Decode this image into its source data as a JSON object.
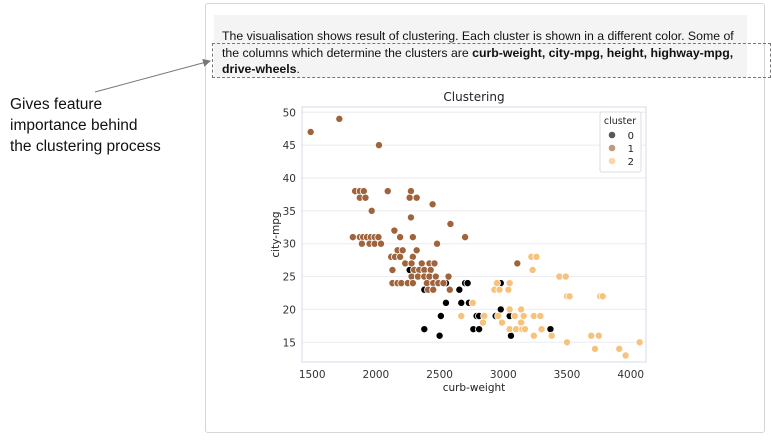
{
  "annotation": {
    "lines": [
      "Gives feature",
      "importance behind",
      "the clustering process"
    ]
  },
  "description": {
    "text": "The visualisation shows result of clustering. Each cluster is shown in a different color. Some of the columns which determine the clusters are ",
    "bold": "curb-weight, city-mpg, height, highway-mpg, drive-wheels",
    "end": "."
  },
  "chart_data": {
    "type": "scatter",
    "title": "Clustering",
    "xlabel": "curb-weight",
    "ylabel": "city-mpg",
    "xlim": [
      1420,
      4120
    ],
    "ylim": [
      12,
      50.8
    ],
    "xticks": [
      1500,
      2000,
      2500,
      3000,
      3500,
      4000
    ],
    "yticks": [
      15,
      20,
      25,
      30,
      35,
      40,
      45,
      50
    ],
    "grid": true,
    "legend": {
      "title": "cluster",
      "placement": "top-right"
    },
    "series": [
      {
        "name": "0",
        "color": "#000000",
        "points": [
          [
            2265,
            26
          ],
          [
            2380,
            23
          ],
          [
            2550,
            24
          ],
          [
            2655,
            23
          ],
          [
            2700,
            24
          ],
          [
            2720,
            24
          ],
          [
            2980,
            24
          ],
          [
            2550,
            21
          ],
          [
            2670,
            21
          ],
          [
            2730,
            21
          ],
          [
            2510,
            19
          ],
          [
            2790,
            19
          ],
          [
            2810,
            19
          ],
          [
            2940,
            19
          ],
          [
            3050,
            19
          ],
          [
            2980,
            20
          ],
          [
            2380,
            17
          ],
          [
            2765,
            17
          ],
          [
            2810,
            17
          ],
          [
            3140,
            17
          ],
          [
            3370,
            17
          ],
          [
            2500,
            16
          ],
          [
            3060,
            16
          ]
        ]
      },
      {
        "name": "1",
        "color": "#a0633b",
        "points": [
          [
            1488,
            47
          ],
          [
            1713,
            49
          ],
          [
            2024,
            45
          ],
          [
            1837,
            38
          ],
          [
            1874,
            38
          ],
          [
            1905,
            38
          ],
          [
            1874,
            37
          ],
          [
            1918,
            37
          ],
          [
            2093,
            38
          ],
          [
            2275,
            38
          ],
          [
            2265,
            37
          ],
          [
            2320,
            37
          ],
          [
            2445,
            36
          ],
          [
            1967,
            35
          ],
          [
            2275,
            34
          ],
          [
            2585,
            33
          ],
          [
            2145,
            32
          ],
          [
            1819,
            31
          ],
          [
            1874,
            31
          ],
          [
            1900,
            31
          ],
          [
            1930,
            31
          ],
          [
            1960,
            31
          ],
          [
            1990,
            31
          ],
          [
            2020,
            31
          ],
          [
            2190,
            31
          ],
          [
            2290,
            31
          ],
          [
            2700,
            31
          ],
          [
            1890,
            30
          ],
          [
            1950,
            30
          ],
          [
            1990,
            30
          ],
          [
            2040,
            30
          ],
          [
            2480,
            30
          ],
          [
            2170,
            29
          ],
          [
            2210,
            29
          ],
          [
            2320,
            29
          ],
          [
            2120,
            28
          ],
          [
            2150,
            28
          ],
          [
            2190,
            28
          ],
          [
            2290,
            28
          ],
          [
            2230,
            27
          ],
          [
            2280,
            27
          ],
          [
            2360,
            27
          ],
          [
            2420,
            27
          ],
          [
            2460,
            27
          ],
          [
            3110,
            27
          ],
          [
            2130,
            26
          ],
          [
            2300,
            26
          ],
          [
            2340,
            26
          ],
          [
            2380,
            26
          ],
          [
            2430,
            26
          ],
          [
            2280,
            25
          ],
          [
            2330,
            25
          ],
          [
            2380,
            25
          ],
          [
            2420,
            25
          ],
          [
            2470,
            25
          ],
          [
            2570,
            25
          ],
          [
            2130,
            24
          ],
          [
            2170,
            24
          ],
          [
            2200,
            24
          ],
          [
            2250,
            24
          ],
          [
            2290,
            24
          ],
          [
            2400,
            24
          ],
          [
            2450,
            24
          ],
          [
            2490,
            24
          ],
          [
            2530,
            24
          ],
          [
            2410,
            23
          ],
          [
            2450,
            23
          ],
          [
            2580,
            23
          ]
        ]
      },
      {
        "name": "2",
        "color": "#f7c27c",
        "points": [
          [
            2930,
            23
          ],
          [
            2970,
            23
          ],
          [
            2950,
            24
          ],
          [
            3040,
            23
          ],
          [
            3050,
            24
          ],
          [
            2760,
            21
          ],
          [
            3050,
            20
          ],
          [
            3140,
            20
          ],
          [
            2670,
            19
          ],
          [
            2850,
            19
          ],
          [
            2960,
            19
          ],
          [
            3090,
            19
          ],
          [
            3160,
            19
          ],
          [
            3240,
            19
          ],
          [
            3290,
            19
          ],
          [
            2840,
            18
          ],
          [
            2990,
            18
          ],
          [
            3140,
            18
          ],
          [
            3050,
            17
          ],
          [
            3100,
            17
          ],
          [
            3150,
            17
          ],
          [
            3170,
            17
          ],
          [
            3300,
            17
          ],
          [
            3240,
            16
          ],
          [
            3380,
            16
          ],
          [
            3500,
            15
          ],
          [
            3220,
            28
          ],
          [
            3260,
            28
          ],
          [
            3230,
            26
          ],
          [
            3440,
            25
          ],
          [
            3490,
            25
          ],
          [
            3500,
            22
          ],
          [
            3520,
            22
          ],
          [
            3760,
            22
          ],
          [
            3780,
            22
          ],
          [
            3690,
            16
          ],
          [
            3750,
            16
          ],
          [
            3720,
            14
          ],
          [
            3910,
            14
          ],
          [
            3960,
            13
          ],
          [
            4070,
            15
          ]
        ]
      }
    ]
  }
}
